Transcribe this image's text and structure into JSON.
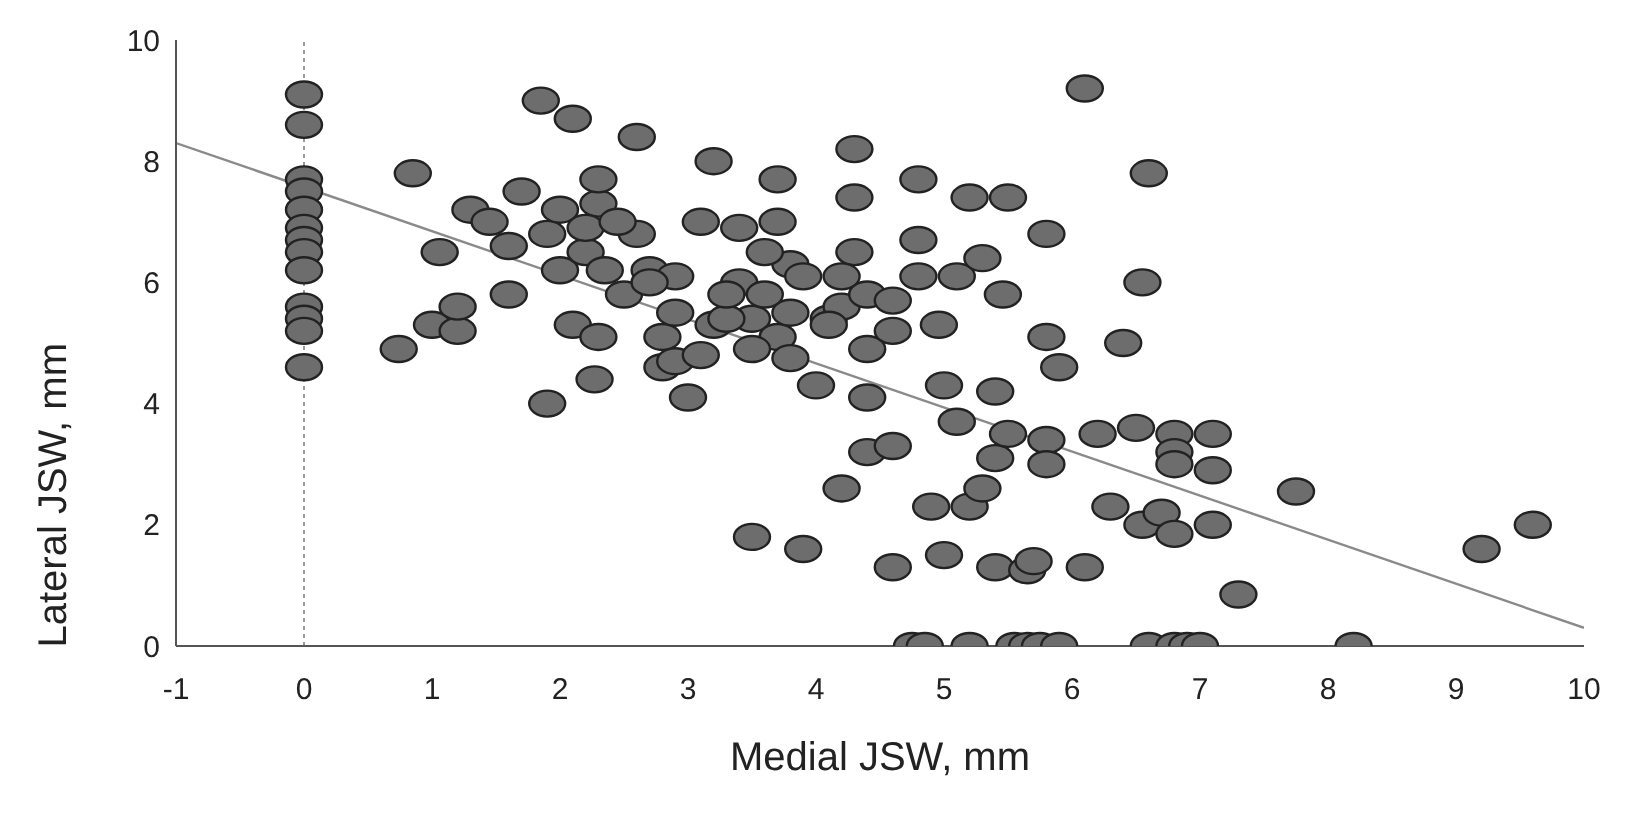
{
  "chart_data": {
    "type": "scatter",
    "xlabel": "Medial JSW, mm",
    "ylabel": "Lateral JSW, mm",
    "xlim": [
      -1,
      10
    ],
    "xticks": [
      -1,
      0,
      1,
      2,
      3,
      4,
      5,
      6,
      7,
      8,
      9,
      10
    ],
    "ylim": [
      0,
      10
    ],
    "yticks": [
      0,
      2,
      4,
      6,
      8,
      10
    ],
    "ref_lines": [
      {
        "axis": "x",
        "value": 0,
        "color": "#999999",
        "line_style": "dotted"
      }
    ],
    "series": [
      {
        "color": "#6d6d6d",
        "marker": "circle",
        "x": [
          0,
          0,
          0,
          0,
          0,
          0,
          0,
          0,
          0,
          0,
          0,
          0,
          0,
          0.85,
          0.74,
          1.0,
          1.2,
          1.06,
          1.2,
          1.3,
          1.45,
          1.6,
          1.7,
          1.6,
          1.85,
          2.1,
          1.9,
          1.9,
          2.0,
          2.1,
          2.0,
          2.2,
          2.3,
          2.3,
          2.3,
          2.27,
          2.2,
          2.6,
          2.5,
          2.6,
          2.7,
          2.8,
          2.8,
          2.9,
          3.0,
          2.9,
          3.1,
          3.2,
          3.2,
          3.4,
          3.4,
          3.5,
          3.5,
          3.7,
          3.7,
          3.7,
          3.8,
          3.9,
          3.9,
          4.0,
          4.1,
          4.2,
          4.2,
          4.3,
          4.3,
          4.3,
          4.4,
          4.4,
          4.4,
          4.4,
          4.6,
          4.6,
          4.6,
          4.8,
          4.8,
          4.8,
          4.9,
          4.96,
          5.0,
          5.0,
          5.1,
          5.1,
          5.2,
          5.2,
          5.3,
          5.3,
          5.4,
          5.4,
          5.46,
          5.5,
          5.5,
          5.4,
          5.65,
          5.7,
          5.8,
          5.8,
          5.8,
          5.8,
          5.9,
          6.1,
          6.1,
          6.2,
          6.3,
          6.4,
          6.5,
          6.55,
          6.6,
          6.55,
          6.7,
          6.8,
          6.8,
          6.8,
          6.8,
          7.1,
          7.1,
          7.1,
          7.3,
          7.75,
          9.2,
          9.6,
          4.75,
          4.85,
          5.2,
          5.55,
          5.65,
          5.75,
          5.9,
          6.6,
          6.8,
          6.9,
          7.0,
          8.2,
          2.35,
          2.9,
          3.3,
          3.6,
          3.8,
          4.1,
          4.2,
          3.1,
          2.7,
          2.45,
          3.5,
          4.6,
          3.3,
          3.6,
          3.8
        ],
        "values": [
          9.1,
          8.6,
          7.7,
          7.5,
          7.2,
          6.9,
          6.7,
          6.5,
          6.2,
          5.6,
          5.4,
          5.2,
          4.6,
          7.8,
          4.9,
          5.3,
          5.2,
          6.5,
          5.6,
          7.2,
          7.0,
          6.6,
          7.5,
          5.8,
          9.0,
          8.7,
          6.8,
          4.0,
          6.2,
          5.3,
          7.2,
          6.5,
          7.3,
          7.7,
          5.1,
          4.4,
          6.9,
          8.4,
          5.8,
          6.8,
          6.2,
          5.1,
          4.6,
          4.7,
          4.1,
          5.5,
          7.0,
          8.0,
          5.3,
          6.9,
          6.0,
          5.4,
          1.8,
          7.0,
          7.7,
          5.1,
          6.3,
          1.6,
          6.1,
          4.3,
          5.4,
          5.6,
          2.6,
          8.2,
          7.4,
          6.5,
          5.8,
          4.9,
          4.1,
          3.2,
          5.7,
          1.3,
          3.3,
          6.1,
          6.7,
          7.7,
          2.3,
          5.3,
          1.5,
          4.3,
          3.7,
          6.1,
          7.4,
          2.3,
          2.6,
          6.4,
          3.1,
          4.2,
          5.8,
          3.5,
          7.4,
          1.3,
          1.25,
          1.4,
          6.8,
          5.1,
          3.4,
          3.0,
          4.6,
          1.3,
          9.2,
          3.5,
          2.3,
          5.0,
          3.6,
          6.0,
          7.8,
          2.0,
          2.2,
          3.5,
          3.2,
          3.0,
          1.85,
          3.5,
          2.9,
          2.0,
          0.85,
          2.55,
          1.6,
          2.0,
          0,
          0,
          0,
          0,
          0,
          0,
          0,
          0,
          0,
          0,
          0,
          0,
          6.2,
          6.1,
          5.4,
          6.5,
          5.5,
          5.3,
          6.1,
          4.8,
          6.0,
          7.0,
          4.9,
          5.2,
          5.8,
          5.8,
          4.75
        ]
      },
      {
        "type": "line",
        "color": "#8a8a8a",
        "line_style": "solid",
        "marker": "none",
        "x": [
          -1,
          10
        ],
        "values": [
          8.3,
          0.3
        ]
      }
    ]
  }
}
